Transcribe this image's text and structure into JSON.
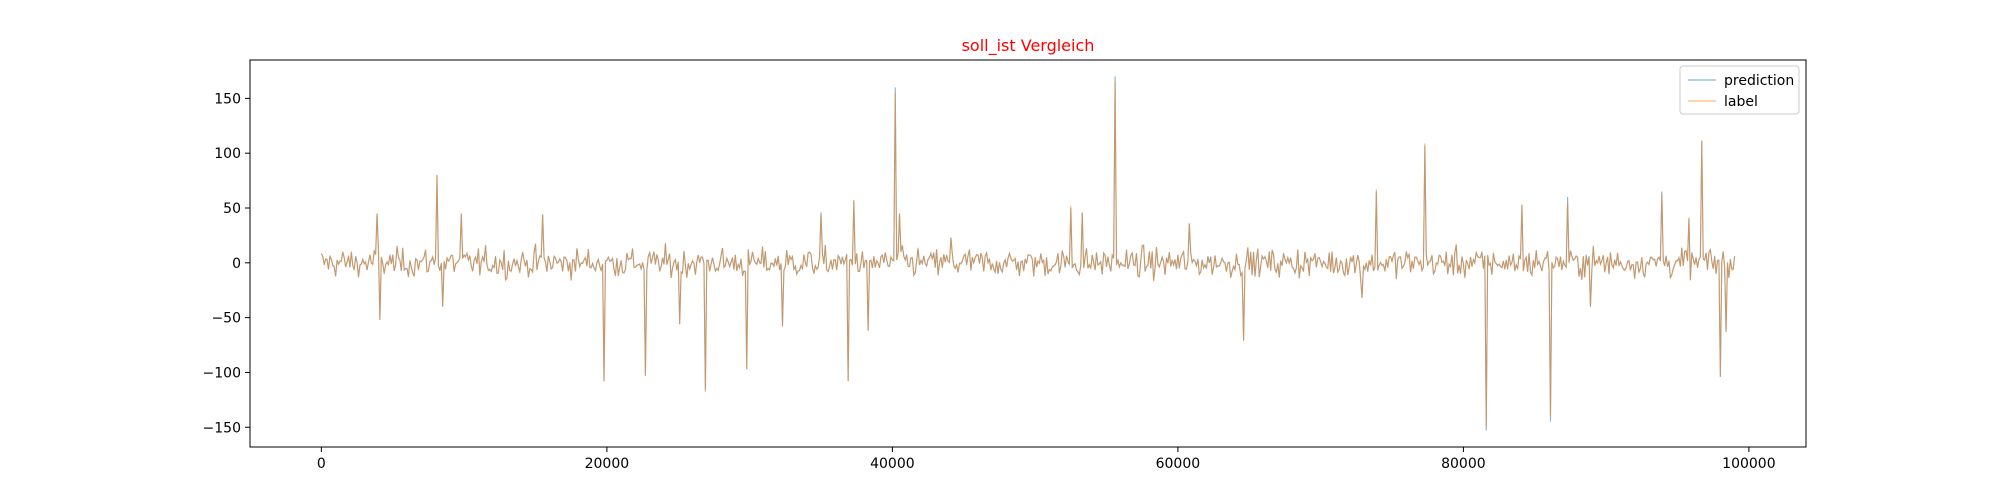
{
  "chart_data": {
    "type": "line",
    "title": "soll_ist Vergleich",
    "title_color": "#ff0000",
    "xlabel": "",
    "ylabel": "",
    "xlim": [
      -5000,
      104000
    ],
    "ylim": [
      -168,
      185
    ],
    "x_ticks": [
      0,
      20000,
      40000,
      60000,
      80000,
      100000
    ],
    "y_ticks": [
      -150,
      -100,
      -50,
      0,
      50,
      100,
      150
    ],
    "grid": false,
    "legend_position": "top-right",
    "x_range": [
      0,
      99000
    ],
    "sample_step": 100,
    "series": [
      {
        "name": "prediction",
        "color": "#1f77b4",
        "spikes": [
          [
            3900,
            45
          ],
          [
            4100,
            -52
          ],
          [
            8100,
            80
          ],
          [
            8500,
            -40
          ],
          [
            9800,
            45
          ],
          [
            15500,
            44
          ],
          [
            19800,
            -108
          ],
          [
            22700,
            -103
          ],
          [
            25100,
            -56
          ],
          [
            26900,
            -116
          ],
          [
            29800,
            -97
          ],
          [
            32300,
            -58
          ],
          [
            35000,
            46
          ],
          [
            36900,
            -108
          ],
          [
            37300,
            57
          ],
          [
            38300,
            -62
          ],
          [
            40200,
            160
          ],
          [
            40500,
            45
          ],
          [
            44100,
            23
          ],
          [
            52500,
            50
          ],
          [
            53300,
            46
          ],
          [
            55600,
            170
          ],
          [
            60800,
            36
          ],
          [
            64600,
            -71
          ],
          [
            72900,
            -32
          ],
          [
            73900,
            65
          ],
          [
            77300,
            107
          ],
          [
            81600,
            -153
          ],
          [
            84100,
            53
          ],
          [
            86100,
            -145
          ],
          [
            87300,
            60
          ],
          [
            88900,
            -40
          ],
          [
            93900,
            65
          ],
          [
            95800,
            41
          ],
          [
            96700,
            111
          ],
          [
            98000,
            -104
          ],
          [
            98400,
            -63
          ]
        ]
      },
      {
        "name": "label",
        "color": "#ff7f0e",
        "spikes": [
          [
            3900,
            45
          ],
          [
            4100,
            -52
          ],
          [
            8100,
            80
          ],
          [
            8500,
            -40
          ],
          [
            9800,
            45
          ],
          [
            15500,
            44
          ],
          [
            19800,
            -108
          ],
          [
            22700,
            -103
          ],
          [
            25100,
            -56
          ],
          [
            26900,
            -118
          ],
          [
            29800,
            -97
          ],
          [
            32300,
            -58
          ],
          [
            35000,
            44
          ],
          [
            36900,
            -108
          ],
          [
            37300,
            57
          ],
          [
            38300,
            -62
          ],
          [
            40200,
            155
          ],
          [
            40500,
            45
          ],
          [
            44100,
            23
          ],
          [
            52500,
            52
          ],
          [
            53300,
            46
          ],
          [
            55600,
            165
          ],
          [
            60800,
            36
          ],
          [
            64600,
            -71
          ],
          [
            72900,
            -32
          ],
          [
            73900,
            67
          ],
          [
            77300,
            109
          ],
          [
            81600,
            -150
          ],
          [
            84100,
            53
          ],
          [
            86100,
            -140
          ],
          [
            87300,
            55
          ],
          [
            88900,
            -40
          ],
          [
            93900,
            63
          ],
          [
            95800,
            41
          ],
          [
            96700,
            112
          ],
          [
            98000,
            -104
          ],
          [
            98400,
            -63
          ]
        ]
      }
    ]
  }
}
